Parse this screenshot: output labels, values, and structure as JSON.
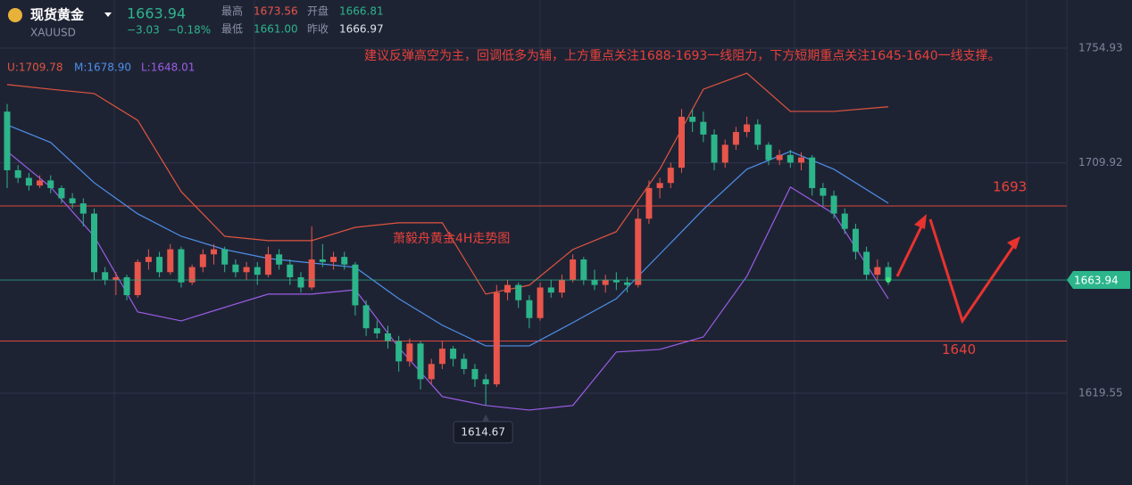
{
  "header": {
    "name": "现货黄金",
    "symbol": "XAUUSD",
    "change": "−3.03",
    "change_pct": "−0.18%",
    "high_label": "最高",
    "high": "1673.56",
    "open_label": "开盘",
    "open": "1666.81",
    "low_label": "最低",
    "low": "1661.00",
    "prev_label": "昨收",
    "prev": "1666.97"
  },
  "chart_data": {
    "type": "candlestick",
    "title": "萧毅舟黄金4H走势图",
    "annotation": "建议反弹高空为主，回调低多为辅，上方重点关注1688-1693一线阻力，下方短期重点关注1645-1640一线支撑。",
    "up_color": "#e8554a",
    "down_color": "#2cb58a",
    "ylim": [
      1583.5,
      1773.8
    ],
    "yticks": [
      1619.55,
      1709.92,
      1754.93
    ],
    "grid": true,
    "hlines": [
      1693,
      1640
    ],
    "hline_color": "#d9473d",
    "open": [
      1730,
      1707,
      1704,
      1701,
      1703,
      1700,
      1696,
      1694,
      1690,
      1667,
      1664,
      1665,
      1658,
      1671,
      1673,
      1667,
      1676,
      1663,
      1669,
      1674,
      1676,
      1670,
      1667,
      1669,
      1666,
      1674,
      1670,
      1665,
      1661,
      1672,
      1671,
      1673,
      1670,
      1654,
      1645,
      1643,
      1640,
      1632,
      1639,
      1625,
      1631,
      1637,
      1633,
      1629,
      1625,
      1623,
      1659,
      1662,
      1656,
      1649,
      1661,
      1659,
      1664,
      1672,
      1664,
      1662,
      1664,
      1663,
      1662,
      1688,
      1700,
      1702,
      1708,
      1728,
      1726,
      1721,
      1710,
      1717,
      1722,
      1725,
      1717,
      1711,
      1713,
      1710,
      1712,
      1700,
      1697,
      1690,
      1684,
      1675,
      1666,
      1669
    ],
    "high": [
      1733,
      1709,
      1706,
      1705,
      1705,
      1701,
      1698,
      1696,
      1692,
      1669,
      1667,
      1666,
      1672,
      1676,
      1675,
      1678,
      1677,
      1670,
      1676,
      1678,
      1677,
      1672,
      1671,
      1671,
      1677,
      1676,
      1672,
      1667,
      1685,
      1678,
      1675,
      1675,
      1671,
      1656,
      1648,
      1646,
      1642,
      1641,
      1640,
      1633,
      1640,
      1638,
      1635,
      1631,
      1627,
      1662,
      1664,
      1663,
      1658,
      1663,
      1664,
      1666,
      1674,
      1673,
      1668,
      1666,
      1667,
      1665,
      1692,
      1703,
      1704,
      1710,
      1731,
      1731,
      1730,
      1723,
      1719,
      1724,
      1728,
      1727,
      1718,
      1715,
      1715,
      1714,
      1713,
      1702,
      1699,
      1692,
      1686,
      1677,
      1672,
      1671
    ],
    "low": [
      1700,
      1702,
      1699,
      1700,
      1698,
      1694,
      1692,
      1685,
      1664,
      1662,
      1658,
      1656,
      1657,
      1668,
      1665,
      1666,
      1661,
      1662,
      1667,
      1670,
      1667,
      1665,
      1664,
      1662,
      1665,
      1668,
      1662,
      1659,
      1660,
      1669,
      1668,
      1668,
      1650,
      1642,
      1641,
      1637,
      1628,
      1630,
      1621,
      1623,
      1629,
      1630,
      1627,
      1622,
      1614.67,
      1622,
      1656,
      1653,
      1645,
      1648,
      1657,
      1657,
      1663,
      1662,
      1660,
      1659,
      1660,
      1659,
      1661,
      1686,
      1696,
      1700,
      1706,
      1722,
      1718,
      1707,
      1708,
      1715,
      1720,
      1715,
      1709,
      1709,
      1708,
      1707,
      1697,
      1693,
      1688,
      1682,
      1672,
      1664,
      1664,
      1662
    ],
    "close": [
      1707,
      1704,
      1701,
      1703,
      1700,
      1696,
      1694,
      1690,
      1667,
      1664,
      1665,
      1658,
      1671,
      1673,
      1667,
      1676,
      1663,
      1669,
      1674,
      1676,
      1670,
      1667,
      1669,
      1666,
      1674,
      1670,
      1665,
      1661,
      1672,
      1671,
      1673,
      1670,
      1654,
      1645,
      1643,
      1640,
      1632,
      1639,
      1625,
      1631,
      1637,
      1633,
      1629,
      1625,
      1623,
      1659,
      1662,
      1656,
      1649,
      1661,
      1659,
      1664,
      1672,
      1664,
      1662,
      1664,
      1663,
      1662,
      1688,
      1700,
      1702,
      1708,
      1728,
      1726,
      1721,
      1710,
      1717,
      1722,
      1725,
      1717,
      1711,
      1713,
      1710,
      1712,
      1700,
      1697,
      1690,
      1684,
      1675,
      1666,
      1669,
      1663.94
    ],
    "bands": {
      "x": [
        0,
        4,
        8,
        12,
        16,
        20,
        24,
        28,
        32,
        36,
        40,
        44,
        48,
        52,
        56,
        60,
        64,
        68,
        72,
        76,
        81
      ],
      "series": [
        {
          "name": "U:1709.78",
          "color": "#e0553e",
          "values": [
            1740.6,
            1738.8,
            1737.1,
            1726.6,
            1698.6,
            1681.1,
            1679.4,
            1679.4,
            1684.6,
            1686.4,
            1686.4,
            1658.4,
            1661.9,
            1675.9,
            1682.9,
            1707.4,
            1738.8,
            1745.1,
            1730.1,
            1730.1,
            1731.9
          ]
        },
        {
          "name": "M:1678.90",
          "color": "#4e8fe8",
          "values": [
            1724.8,
            1717.9,
            1702.1,
            1689.9,
            1681.1,
            1675.9,
            1672.4,
            1670.6,
            1668.9,
            1656.6,
            1646.2,
            1638.1,
            1638.1,
            1647.2,
            1656.6,
            1674.1,
            1691.6,
            1707.4,
            1714.4,
            1707.4,
            1694.1
          ]
        },
        {
          "name": "L:1648.01",
          "color": "#9b5de5",
          "values": [
            1714.4,
            1700.4,
            1681.1,
            1651.4,
            1647.9,
            1653.2,
            1658.4,
            1658.4,
            1660.1,
            1637.4,
            1618.2,
            1614.7,
            1612.9,
            1614.7,
            1635.7,
            1636.7,
            1641.6,
            1665.4,
            1700.4,
            1689.9,
            1656.6
          ]
        }
      ]
    }
  }
}
